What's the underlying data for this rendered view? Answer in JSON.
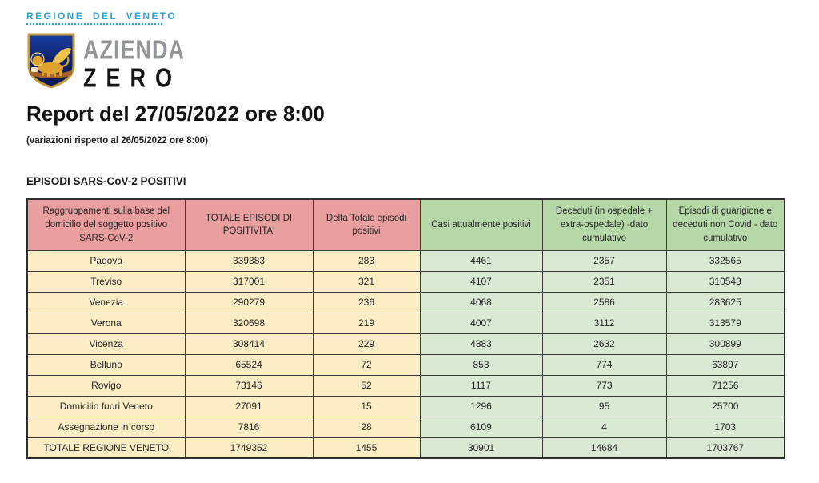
{
  "logo": {
    "region_name": "REGIONE DEL VENETO",
    "brand_top": "AZIENDA",
    "brand_bottom": "ZERO",
    "crest_icon": "venetian-lion-shield",
    "colors": {
      "region_blue": "#2e9fd6",
      "brand_gray": "#939598",
      "brand_black": "#141414",
      "shield_blue": "#0e2470",
      "lion_gold": "#e0a42e"
    }
  },
  "report": {
    "title": "Report del 27/05/2022 ore 8:00",
    "subtitle": "(variazioni rispetto al 26/05/2022 ore 8:00)",
    "section_heading": "EPISODI SARS-CoV-2 POSITIVI"
  },
  "table": {
    "columns": [
      "Raggruppamenti sulla base del domicilio del soggetto positivo SARS-CoV-2",
      "TOTALE EPISODI DI POSITIVITA'",
      "Delta Totale episodi positivi",
      "Casi attualmente positivi",
      "Deceduti (in ospedale + extra-ospedale) -dato cumulativo",
      "Episodi di guarigione e deceduti non Covid - dato cumulativo"
    ],
    "rows": [
      [
        "Padova",
        "339383",
        "283",
        "4461",
        "2357",
        "332565"
      ],
      [
        "Treviso",
        "317001",
        "321",
        "4107",
        "2351",
        "310543"
      ],
      [
        "Venezia",
        "290279",
        "236",
        "4068",
        "2586",
        "283625"
      ],
      [
        "Verona",
        "320698",
        "219",
        "4007",
        "3112",
        "313579"
      ],
      [
        "Vicenza",
        "308414",
        "229",
        "4883",
        "2632",
        "300899"
      ],
      [
        "Belluno",
        "65524",
        "72",
        "853",
        "774",
        "63897"
      ],
      [
        "Rovigo",
        "73146",
        "52",
        "1117",
        "773",
        "71256"
      ],
      [
        "Domicilio fuori Veneto",
        "27091",
        "15",
        "1296",
        "95",
        "25700"
      ],
      [
        "Assegnazione in corso",
        "7816",
        "28",
        "6109",
        "4",
        "1703"
      ]
    ],
    "total_row": [
      "TOTALE REGIONE VENETO",
      "1749352",
      "1455",
      "30901",
      "14684",
      "1703767"
    ],
    "colors": {
      "header_pink": "#e99f9f",
      "header_green": "#b6d7a8",
      "body_yellow": "#fcedc5",
      "body_green": "#d9e9d4",
      "border": "#3b3b3b"
    }
  }
}
